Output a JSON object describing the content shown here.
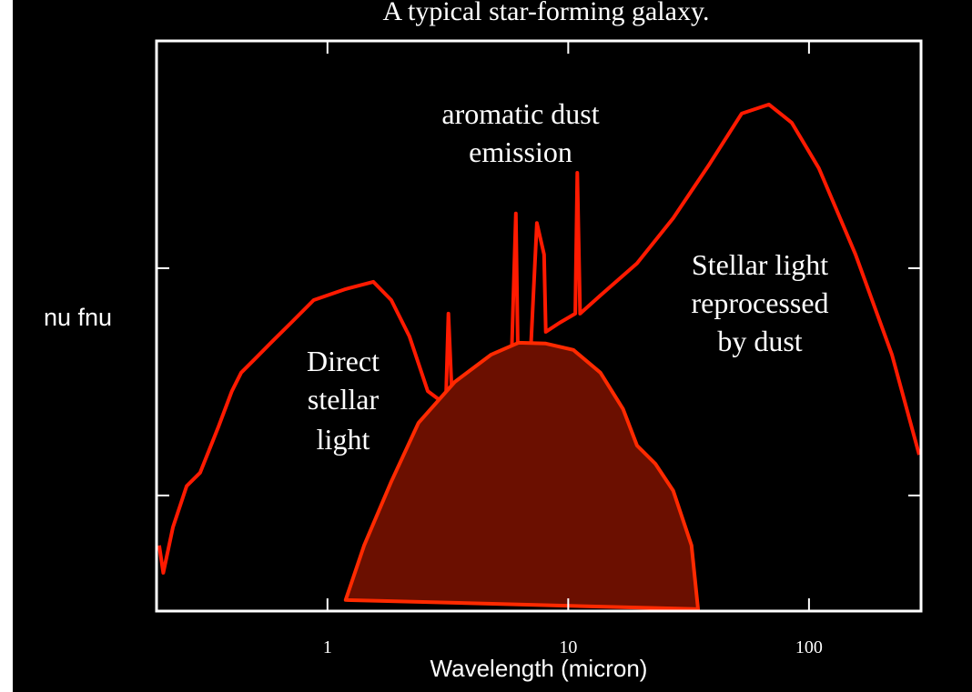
{
  "chart_data": {
    "type": "line",
    "title": "A typical star-forming galaxy.",
    "x_label": "Wavelength (micron)",
    "y_label": "nu fnu",
    "xscale": "log",
    "yscale": "log",
    "xlim": [
      0.195,
      292
    ],
    "ylim": [
      0.31,
      100
    ],
    "xticks": [
      1,
      10,
      100
    ],
    "yticks": [
      1,
      10
    ],
    "series": [
      {
        "color": "#ff1a00",
        "x": [
          0.2,
          0.208,
          0.228,
          0.26,
          0.296,
          0.352,
          0.401,
          0.438,
          0.499,
          0.593,
          0.706,
          0.877,
          1.19,
          1.55,
          1.84,
          2.19,
          2.61,
          3.1,
          3.18,
          3.3,
          4.03,
          4.59,
          5.0,
          5.7,
          6.06,
          6.22,
          6.67,
          6.97,
          7.41,
          7.94,
          8.07,
          9.2,
          10.7,
          10.9,
          11.2,
          13.6,
          19.3,
          27.3,
          38.7,
          52.5,
          68.2,
          84.8,
          110,
          156,
          221,
          287
        ],
        "values": [
          0.603,
          0.457,
          0.724,
          1.1,
          1.26,
          2.0,
          2.88,
          3.47,
          3.98,
          4.79,
          5.75,
          7.24,
          8.09,
          8.71,
          7.24,
          5.01,
          2.88,
          2.51,
          6.31,
          2.51,
          1.66,
          1.32,
          1.38,
          2.0,
          17.4,
          2.63,
          2.63,
          4.17,
          15.8,
          11.5,
          5.25,
          5.75,
          6.31,
          26.3,
          6.31,
          7.59,
          10.5,
          16.6,
          28.8,
          47.9,
          52.5,
          43.7,
          27.5,
          11.5,
          4.17,
          1.51
        ]
      },
      {
        "color": "#ff2a00",
        "fill": "#6b0f00",
        "x": [
          1.19,
          1.42,
          1.84,
          2.39,
          3.38,
          4.79,
          6.22,
          8.07,
          10.5,
          13.6,
          16.9,
          19.3,
          23.0,
          27.3,
          32.5,
          34.6
        ],
        "values": [
          0.347,
          0.603,
          1.15,
          2.09,
          3.16,
          4.17,
          4.7,
          4.66,
          4.37,
          3.47,
          2.4,
          1.66,
          1.38,
          1.05,
          0.603,
          0.316
        ]
      }
    ],
    "annotations": [
      "aromatic dust",
      "emission",
      "Stellar light",
      "reprocessed",
      "by dust",
      "Direct",
      "stellar",
      "light"
    ]
  }
}
